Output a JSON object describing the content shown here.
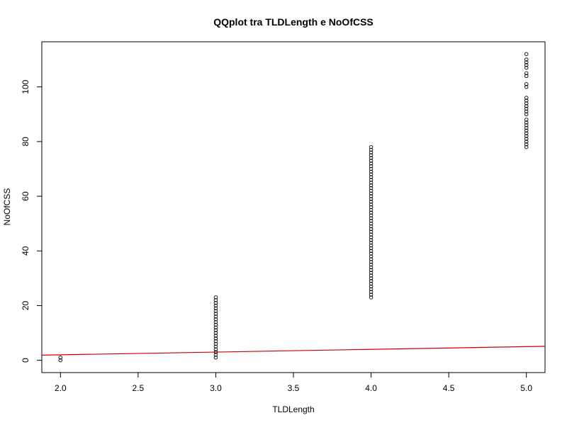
{
  "chart_data": {
    "type": "scatter",
    "title": "QQplot tra TLDLength e NoOfCSS",
    "xlabel": "TLDLength",
    "ylabel": "NoOfCSS",
    "xlim": [
      1.88,
      5.12
    ],
    "ylim": [
      -4.5,
      116.5
    ],
    "xticks": [
      "2.0",
      "2.5",
      "3.0",
      "3.5",
      "4.0",
      "4.5",
      "5.0"
    ],
    "yticks": [
      "0",
      "20",
      "40",
      "60",
      "80",
      "100"
    ],
    "grid": false,
    "point_style": "open-circle",
    "points": [
      {
        "x": 2.0,
        "y_values": [
          0,
          1
        ]
      },
      {
        "x": 3.0,
        "y_values": [
          1,
          2,
          3,
          4,
          5,
          6,
          7,
          8,
          9,
          10,
          11,
          12,
          13,
          14,
          15,
          16,
          17,
          18,
          19,
          20,
          21,
          22,
          23
        ]
      },
      {
        "x": 4.0,
        "y_values": [
          23,
          24,
          25,
          26,
          27,
          28,
          29,
          30,
          31,
          32,
          33,
          34,
          35,
          36,
          37,
          38,
          39,
          40,
          41,
          42,
          43,
          44,
          45,
          46,
          47,
          48,
          49,
          50,
          51,
          52,
          53,
          54,
          55,
          56,
          57,
          58,
          59,
          60,
          61,
          62,
          63,
          64,
          65,
          66,
          67,
          68,
          69,
          70,
          71,
          72,
          73,
          74,
          75,
          76,
          77,
          78
        ]
      },
      {
        "x": 5.0,
        "y_values": [
          78,
          79,
          80,
          81,
          82,
          83,
          84,
          85,
          86,
          87,
          88,
          90,
          91,
          92,
          93,
          94,
          95,
          96,
          100,
          101,
          104,
          105,
          107,
          108,
          109,
          110,
          112
        ]
      }
    ],
    "reference_line": {
      "color": "#cc0000",
      "x": [
        1.88,
        5.12
      ],
      "y": [
        1.88,
        5.12
      ]
    },
    "point_color": "#000000"
  }
}
